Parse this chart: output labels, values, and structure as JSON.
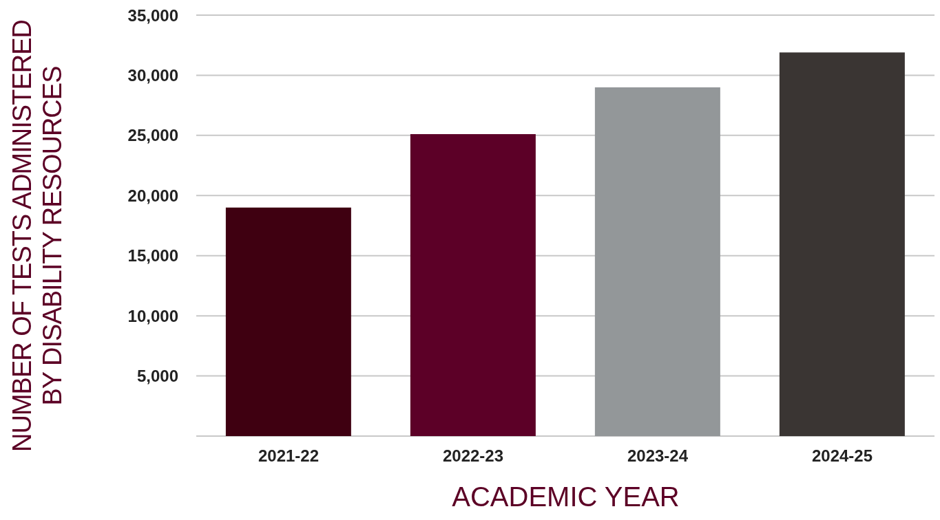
{
  "chart_data": {
    "type": "bar",
    "xlabel": "ACADEMIC YEAR",
    "ylabel": "NUMBER OF TESTS ADMINISTERED BY DISABILITY RESOURCES",
    "categories": [
      "2021-22",
      "2022-23",
      "2023-24",
      "2024-25"
    ],
    "values": [
      19000,
      25100,
      29000,
      31900
    ],
    "colors": [
      "#3f0011",
      "#5c0027",
      "#939799",
      "#3a3533"
    ],
    "ylim": [
      0,
      35000
    ],
    "yticks": [
      {
        "value": 5000,
        "label": "5,000"
      },
      {
        "value": 10000,
        "label": "10,000"
      },
      {
        "value": 15000,
        "label": "15,000"
      },
      {
        "value": 20000,
        "label": "20,000"
      },
      {
        "value": 25000,
        "label": "25,000"
      },
      {
        "value": 30000,
        "label": "30,000"
      },
      {
        "value": 35000,
        "label": "35,000"
      }
    ],
    "grid": "y"
  }
}
